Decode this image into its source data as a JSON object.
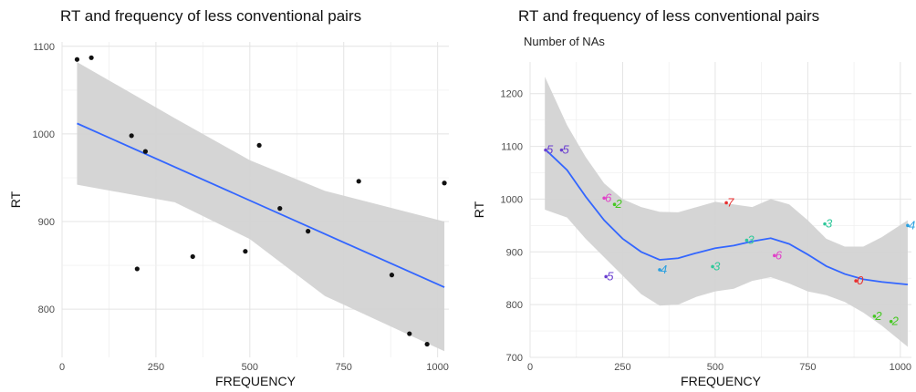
{
  "chart_data": [
    {
      "type": "scatter",
      "title": "RT and frequency of less conventional pairs",
      "subtitle": "",
      "xlabel": "FREQUENCY",
      "ylabel": "RT",
      "xlim": [
        0,
        1030
      ],
      "ylim": [
        745,
        1105
      ],
      "xticks": [
        0,
        250,
        500,
        750,
        1000
      ],
      "yticks": [
        800,
        900,
        1000,
        1100
      ],
      "grid": true,
      "points": [
        {
          "x": 40,
          "y": 1085
        },
        {
          "x": 78,
          "y": 1087
        },
        {
          "x": 185,
          "y": 998
        },
        {
          "x": 200,
          "y": 846
        },
        {
          "x": 222,
          "y": 980
        },
        {
          "x": 348,
          "y": 860
        },
        {
          "x": 488,
          "y": 866
        },
        {
          "x": 525,
          "y": 987
        },
        {
          "x": 580,
          "y": 915
        },
        {
          "x": 655,
          "y": 889
        },
        {
          "x": 790,
          "y": 946
        },
        {
          "x": 878,
          "y": 839
        },
        {
          "x": 925,
          "y": 772
        },
        {
          "x": 972,
          "y": 760
        },
        {
          "x": 1018,
          "y": 944
        }
      ],
      "fit": {
        "method": "linear",
        "x": [
          40,
          1018
        ],
        "y": [
          1012,
          825
        ]
      },
      "band_upper": [
        [
          40,
          1082
        ],
        [
          300,
          1018
        ],
        [
          500,
          970
        ],
        [
          700,
          935
        ],
        [
          1018,
          900
        ]
      ],
      "band_lower": [
        [
          40,
          942
        ],
        [
          300,
          922
        ],
        [
          500,
          880
        ],
        [
          700,
          815
        ],
        [
          1018,
          752
        ]
      ],
      "colors": {
        "points": "#111111",
        "fit": "#3366ff",
        "band": "#d3d3d3"
      }
    },
    {
      "type": "scatter",
      "title": "RT and frequency of less conventional pairs",
      "subtitle": "Number of NAs",
      "xlabel": "FREQUENCY",
      "ylabel": "RT",
      "xlim": [
        0,
        1030
      ],
      "ylim": [
        700,
        1260
      ],
      "xticks": [
        0,
        250,
        500,
        750,
        1000
      ],
      "yticks": [
        700,
        800,
        900,
        1000,
        1100,
        1200
      ],
      "grid": true,
      "points": [
        {
          "x": 42,
          "y": 1093,
          "label": "5",
          "color": "#6a3fd0"
        },
        {
          "x": 85,
          "y": 1093,
          "label": "5",
          "color": "#6a3fd0"
        },
        {
          "x": 200,
          "y": 1002,
          "label": "6",
          "color": "#e040c8"
        },
        {
          "x": 228,
          "y": 990,
          "label": "2",
          "color": "#44c820"
        },
        {
          "x": 205,
          "y": 853,
          "label": "5",
          "color": "#6a3fd0"
        },
        {
          "x": 350,
          "y": 866,
          "label": "4",
          "color": "#2aa0e0"
        },
        {
          "x": 493,
          "y": 872,
          "label": "3",
          "color": "#2ec89a"
        },
        {
          "x": 530,
          "y": 993,
          "label": "7",
          "color": "#e83030"
        },
        {
          "x": 585,
          "y": 922,
          "label": "3",
          "color": "#2ec89a"
        },
        {
          "x": 660,
          "y": 893,
          "label": "6",
          "color": "#e040c8"
        },
        {
          "x": 796,
          "y": 953,
          "label": "3",
          "color": "#2ec89a"
        },
        {
          "x": 880,
          "y": 845,
          "label": "0",
          "color": "#e83030"
        },
        {
          "x": 930,
          "y": 778,
          "label": "2",
          "color": "#44c820"
        },
        {
          "x": 975,
          "y": 768,
          "label": "2",
          "color": "#44c820"
        },
        {
          "x": 1020,
          "y": 950,
          "label": "4",
          "color": "#2aa0e0"
        }
      ],
      "fit": {
        "method": "loess",
        "x": [
          40,
          100,
          150,
          200,
          250,
          300,
          350,
          400,
          450,
          500,
          550,
          600,
          650,
          700,
          750,
          800,
          850,
          900,
          950,
          1020
        ],
        "y": [
          1095,
          1055,
          1005,
          960,
          925,
          900,
          885,
          888,
          898,
          907,
          912,
          920,
          926,
          915,
          895,
          873,
          858,
          848,
          843,
          838
        ]
      },
      "band_upper": [
        [
          40,
          1232
        ],
        [
          100,
          1140
        ],
        [
          150,
          1080
        ],
        [
          200,
          1030
        ],
        [
          250,
          1000
        ],
        [
          300,
          985
        ],
        [
          350,
          976
        ],
        [
          400,
          975
        ],
        [
          450,
          985
        ],
        [
          500,
          995
        ],
        [
          550,
          990
        ],
        [
          600,
          985
        ],
        [
          650,
          1000
        ],
        [
          700,
          990
        ],
        [
          750,
          960
        ],
        [
          800,
          925
        ],
        [
          850,
          910
        ],
        [
          900,
          910
        ],
        [
          950,
          928
        ],
        [
          1020,
          960
        ]
      ],
      "band_lower": [
        [
          40,
          980
        ],
        [
          100,
          965
        ],
        [
          150,
          925
        ],
        [
          200,
          890
        ],
        [
          250,
          855
        ],
        [
          300,
          820
        ],
        [
          350,
          798
        ],
        [
          400,
          800
        ],
        [
          450,
          815
        ],
        [
          500,
          825
        ],
        [
          550,
          830
        ],
        [
          600,
          845
        ],
        [
          650,
          852
        ],
        [
          700,
          840
        ],
        [
          750,
          825
        ],
        [
          800,
          818
        ],
        [
          850,
          805
        ],
        [
          900,
          785
        ],
        [
          950,
          760
        ],
        [
          1020,
          720
        ]
      ],
      "colors": {
        "fit": "#3366ff",
        "band": "#d3d3d3"
      }
    }
  ]
}
